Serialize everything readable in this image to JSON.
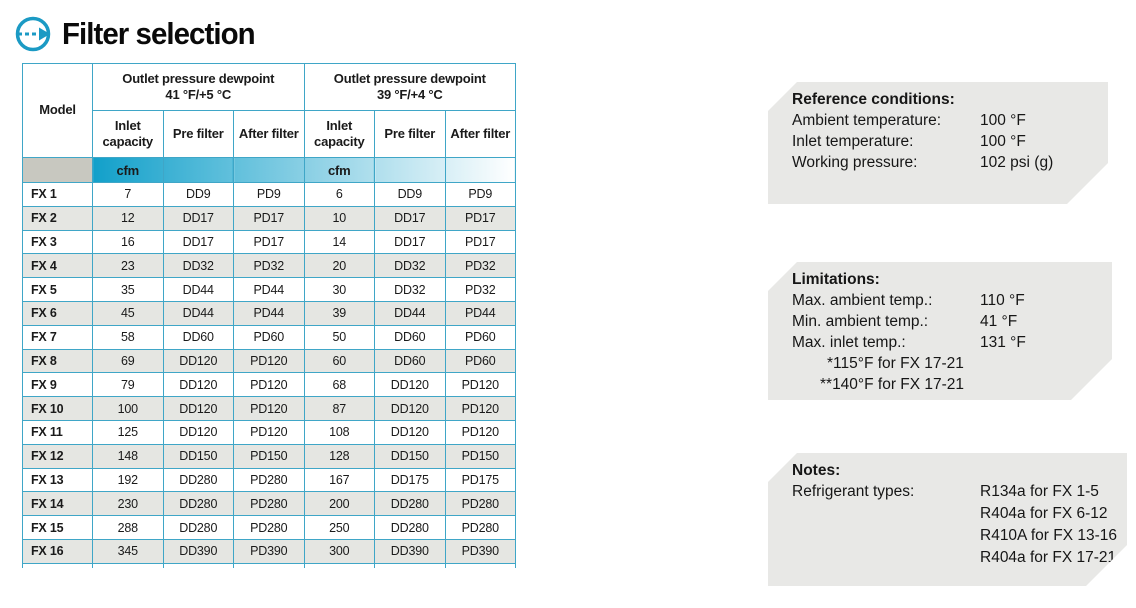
{
  "page": {
    "title": "Filter selection"
  },
  "colors": {
    "accent_blue": "#1b9ac4",
    "table_border": "#3fa6c7",
    "row_stripe": "#e5e6e2",
    "unit_gradient_start": "#12a0ca",
    "unit_gradient_end": "#ffffff",
    "unit_model_cell": "#c8c8c0",
    "panel_bg": "#e8e8e6"
  },
  "table": {
    "model_header": "Model",
    "groups": [
      {
        "line1": "Outlet pressure dewpoint",
        "line2": "41 °F/+5 °C"
      },
      {
        "line1": "Outlet pressure dewpoint",
        "line2": "39 °F/+4 °C"
      }
    ],
    "sub_headers": [
      "Inlet capacity",
      "Pre filter",
      "After filter",
      "Inlet capacity",
      "Pre filter",
      "After filter"
    ],
    "unit": "cfm",
    "rows": [
      {
        "model": "FX 1",
        "values": [
          "7",
          "DD9",
          "PD9",
          "6",
          "DD9",
          "PD9"
        ]
      },
      {
        "model": "FX 2",
        "values": [
          "12",
          "DD17",
          "PD17",
          "10",
          "DD17",
          "PD17"
        ]
      },
      {
        "model": "FX 3",
        "values": [
          "16",
          "DD17",
          "PD17",
          "14",
          "DD17",
          "PD17"
        ]
      },
      {
        "model": "FX 4",
        "values": [
          "23",
          "DD32",
          "PD32",
          "20",
          "DD32",
          "PD32"
        ]
      },
      {
        "model": "FX 5",
        "values": [
          "35",
          "DD44",
          "PD44",
          "30",
          "DD32",
          "PD32"
        ]
      },
      {
        "model": "FX 6",
        "values": [
          "45",
          "DD44",
          "PD44",
          "39",
          "DD44",
          "PD44"
        ]
      },
      {
        "model": "FX 7",
        "values": [
          "58",
          "DD60",
          "PD60",
          "50",
          "DD60",
          "PD60"
        ]
      },
      {
        "model": "FX 8",
        "values": [
          "69",
          "DD120",
          "PD120",
          "60",
          "DD60",
          "PD60"
        ]
      },
      {
        "model": "FX 9",
        "values": [
          "79",
          "DD120",
          "PD120",
          "68",
          "DD120",
          "PD120"
        ]
      },
      {
        "model": "FX 10",
        "values": [
          "100",
          "DD120",
          "PD120",
          "87",
          "DD120",
          "PD120"
        ]
      },
      {
        "model": "FX 11",
        "values": [
          "125",
          "DD120",
          "PD120",
          "108",
          "DD120",
          "PD120"
        ]
      },
      {
        "model": "FX 12",
        "values": [
          "148",
          "DD150",
          "PD150",
          "128",
          "DD150",
          "PD150"
        ]
      },
      {
        "model": "FX 13",
        "values": [
          "192",
          "DD280",
          "PD280",
          "167",
          "DD175",
          "PD175"
        ]
      },
      {
        "model": "FX 14",
        "values": [
          "230",
          "DD280",
          "PD280",
          "200",
          "DD280",
          "PD280"
        ]
      },
      {
        "model": "FX 15",
        "values": [
          "288",
          "DD280",
          "PD280",
          "250",
          "DD280",
          "PD280"
        ]
      },
      {
        "model": "FX 16",
        "values": [
          "345",
          "DD390",
          "PD390",
          "300",
          "DD390",
          "PD390"
        ]
      }
    ]
  },
  "panels": [
    {
      "title": "Reference conditions:",
      "rows": [
        {
          "label": "Ambient temperature:",
          "value": "100 °F"
        },
        {
          "label": "Inlet temperature:",
          "value": "100 °F"
        },
        {
          "label": "Working pressure:",
          "value": "102 psi (g)"
        }
      ]
    },
    {
      "title": "Limitations:",
      "rows": [
        {
          "label": "Max. ambient temp.:",
          "value": "110 °F"
        },
        {
          "label": "Min. ambient temp.:",
          "value": "41 °F"
        },
        {
          "label": "Max. inlet temp.:",
          "value": "131 °F"
        }
      ],
      "footnotes": [
        "*115°F for FX 17-21",
        "**140°F for FX 17-21"
      ]
    },
    {
      "title": "Notes:",
      "rows": [
        {
          "label": "Refrigerant types:",
          "values": [
            "R134a for FX 1-5",
            "R404a for FX 6-12",
            "R410A for FX 13-16",
            "R404a for FX 17-21"
          ]
        }
      ]
    }
  ]
}
